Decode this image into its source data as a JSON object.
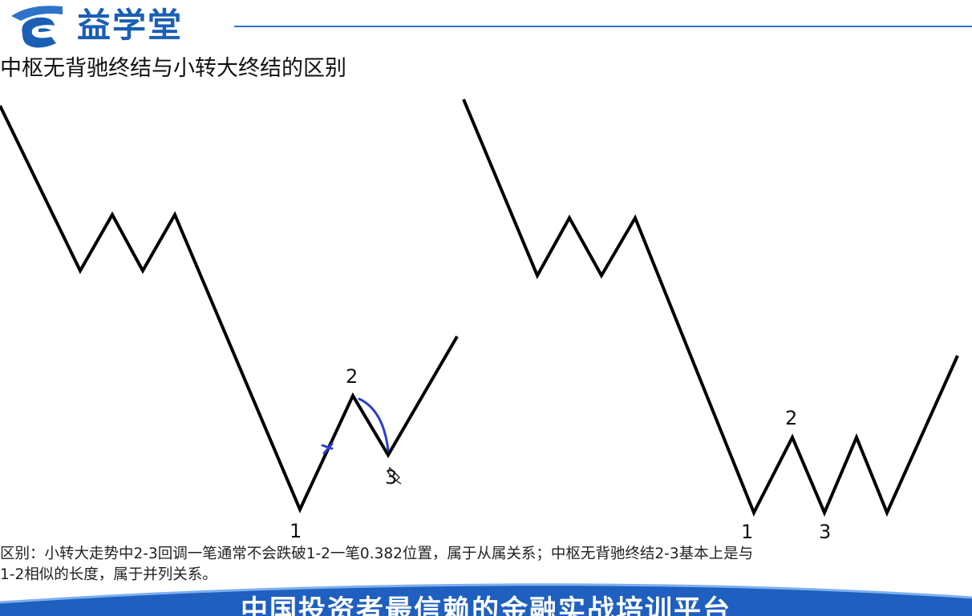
{
  "header": {
    "brand_name": "益学堂",
    "logo_icon": "yixuetang-logo-icon",
    "accent_color": "#1a5fb4"
  },
  "page_title": "中枢无背驰终结与小转大终结的区别",
  "left_diagram": {
    "label_1": "1",
    "label_2": "2",
    "label_3": "3",
    "annotation_color": "#2a3fd0"
  },
  "right_diagram": {
    "label_1": "1",
    "label_2": "2",
    "label_3": "3"
  },
  "explanation": {
    "line1": "区别：小转大走势中2-3回调一笔通常不会跌破1-2一笔0.382位置，属于从属关系；中枢无背驰终结2-3基本上是与",
    "line2": "1-2相似的长度，属于并列关系。"
  },
  "banner": {
    "text": "中国投资者最信赖的金融实战培训平台",
    "color": "#1e5fc0"
  }
}
